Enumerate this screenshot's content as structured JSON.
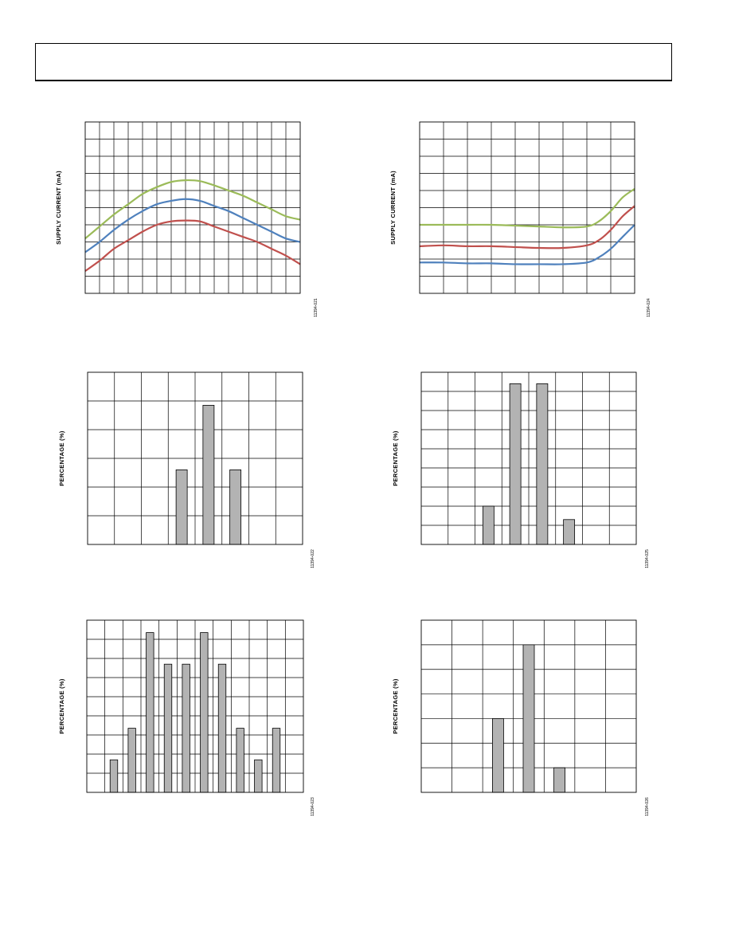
{
  "page": {
    "header": ""
  },
  "chart_data": [
    {
      "id": "fig1",
      "type": "line",
      "ylabel": "SUPPLY CURRENT (mA)",
      "figure_id": "11394-021",
      "grid": {
        "cols": 15,
        "rows": 10
      },
      "xlim": [
        0,
        15
      ],
      "ylim": [
        0,
        10
      ],
      "series": [
        {
          "color": "#9bbb59",
          "x": [
            0,
            1,
            2,
            3,
            4,
            5,
            6,
            7,
            8,
            9,
            10,
            11,
            12,
            13,
            14,
            15
          ],
          "y": [
            3.2,
            3.9,
            4.6,
            5.2,
            5.8,
            6.2,
            6.5,
            6.6,
            6.55,
            6.3,
            6.0,
            5.7,
            5.3,
            4.9,
            4.5,
            4.3
          ]
        },
        {
          "color": "#4f81bd",
          "x": [
            0,
            1,
            2,
            3,
            4,
            5,
            6,
            7,
            8,
            9,
            10,
            11,
            12,
            13,
            14,
            15
          ],
          "y": [
            2.4,
            3.0,
            3.7,
            4.3,
            4.8,
            5.2,
            5.4,
            5.5,
            5.4,
            5.1,
            4.8,
            4.4,
            4.0,
            3.6,
            3.2,
            3.0
          ]
        },
        {
          "color": "#c0504d",
          "x": [
            0,
            1,
            2,
            3,
            4,
            5,
            6,
            7,
            8,
            9,
            10,
            11,
            12,
            13,
            14,
            15
          ],
          "y": [
            1.3,
            1.9,
            2.6,
            3.1,
            3.6,
            4.0,
            4.2,
            4.25,
            4.2,
            3.9,
            3.6,
            3.3,
            3.0,
            2.6,
            2.2,
            1.7
          ]
        }
      ]
    },
    {
      "id": "fig2",
      "type": "line",
      "ylabel": "SUPPLY CURRENT (mA)",
      "figure_id": "11394-024",
      "grid": {
        "cols": 9,
        "rows": 10
      },
      "xlim": [
        0,
        9
      ],
      "ylim": [
        0,
        10
      ],
      "series": [
        {
          "color": "#9bbb59",
          "x": [
            0,
            1,
            2,
            3,
            4,
            5,
            6,
            7,
            7.5,
            8,
            8.5,
            9
          ],
          "y": [
            4.0,
            4.0,
            4.0,
            4.0,
            3.95,
            3.9,
            3.85,
            3.9,
            4.2,
            4.8,
            5.6,
            6.1
          ]
        },
        {
          "color": "#c0504d",
          "x": [
            0,
            1,
            2,
            3,
            4,
            5,
            6,
            7,
            7.5,
            8,
            8.5,
            9
          ],
          "y": [
            2.75,
            2.8,
            2.75,
            2.75,
            2.7,
            2.65,
            2.65,
            2.8,
            3.1,
            3.7,
            4.5,
            5.1
          ]
        },
        {
          "color": "#4f81bd",
          "x": [
            0,
            1,
            2,
            3,
            4,
            5,
            6,
            7,
            7.5,
            8,
            8.5,
            9
          ],
          "y": [
            1.8,
            1.8,
            1.75,
            1.75,
            1.7,
            1.7,
            1.7,
            1.8,
            2.1,
            2.6,
            3.3,
            4.0
          ]
        }
      ]
    },
    {
      "id": "fig3",
      "type": "bar",
      "ylabel": "PERCENTAGE (%)",
      "figure_id": "11394-022",
      "grid": {
        "cols": 8,
        "rows": 6
      },
      "ylim": [
        0,
        6
      ],
      "bar_color": "#b3b3b3",
      "bars": [
        {
          "pos": 3.5,
          "value": 2.6
        },
        {
          "pos": 4.5,
          "value": 4.85
        },
        {
          "pos": 5.5,
          "value": 2.6
        }
      ]
    },
    {
      "id": "fig4",
      "type": "bar",
      "ylabel": "PERCENTAGE (%)",
      "figure_id": "11394-025",
      "grid": {
        "cols": 8,
        "rows": 9
      },
      "ylim": [
        0,
        9
      ],
      "bar_color": "#b3b3b3",
      "bars": [
        {
          "pos": 2.5,
          "value": 2.0
        },
        {
          "pos": 3.5,
          "value": 8.4
        },
        {
          "pos": 4.5,
          "value": 8.4
        },
        {
          "pos": 5.5,
          "value": 1.3
        }
      ]
    },
    {
      "id": "fig5",
      "type": "bar",
      "ylabel": "PERCENTAGE (%)",
      "figure_id": "11394-023",
      "grid": {
        "cols": 12,
        "rows": 9
      },
      "ylim": [
        0,
        9
      ],
      "bar_color": "#b3b3b3",
      "bars": [
        {
          "pos": 1.5,
          "value": 1.7
        },
        {
          "pos": 2.5,
          "value": 3.35
        },
        {
          "pos": 3.5,
          "value": 8.35
        },
        {
          "pos": 4.5,
          "value": 6.7
        },
        {
          "pos": 5.5,
          "value": 6.7
        },
        {
          "pos": 6.5,
          "value": 8.35
        },
        {
          "pos": 7.5,
          "value": 6.7
        },
        {
          "pos": 8.5,
          "value": 3.35
        },
        {
          "pos": 9.5,
          "value": 1.7
        },
        {
          "pos": 10.5,
          "value": 3.35
        }
      ]
    },
    {
      "id": "fig6",
      "type": "bar",
      "ylabel": "PERCENTAGE (%)",
      "figure_id": "11394-026",
      "grid": {
        "cols": 7,
        "rows": 7
      },
      "ylim": [
        0,
        7
      ],
      "bar_color": "#b3b3b3",
      "bars": [
        {
          "pos": 2.5,
          "value": 3.0
        },
        {
          "pos": 3.5,
          "value": 6.0
        },
        {
          "pos": 4.5,
          "value": 1.0
        }
      ]
    }
  ]
}
